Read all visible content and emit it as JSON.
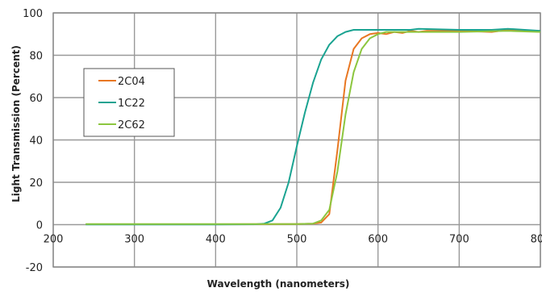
{
  "chart_data": {
    "type": "line",
    "title": "",
    "xlabel": "Wavelength (nanometers)",
    "ylabel": "Light Transmission (Percent)",
    "xlim": [
      200,
      800
    ],
    "ylim": [
      -20,
      100
    ],
    "xticks": [
      200,
      300,
      400,
      500,
      600,
      700,
      800
    ],
    "yticks": [
      -20,
      0,
      20,
      40,
      60,
      80,
      100
    ],
    "grid": true,
    "legend_position": "left",
    "series": [
      {
        "name": "2C04",
        "color": "#E87722",
        "points": [
          [
            240,
            0.2
          ],
          [
            300,
            0.2
          ],
          [
            400,
            0.2
          ],
          [
            500,
            0.3
          ],
          [
            520,
            0.5
          ],
          [
            530,
            1.0
          ],
          [
            540,
            5.0
          ],
          [
            550,
            35.0
          ],
          [
            560,
            68.0
          ],
          [
            570,
            83.0
          ],
          [
            580,
            88.0
          ],
          [
            590,
            90.0
          ],
          [
            600,
            90.5
          ],
          [
            610,
            90.0
          ],
          [
            620,
            91.0
          ],
          [
            630,
            90.5
          ],
          [
            640,
            91.5
          ],
          [
            650,
            91.0
          ],
          [
            660,
            91.5
          ],
          [
            700,
            91.5
          ],
          [
            740,
            91.0
          ],
          [
            760,
            92.0
          ],
          [
            780,
            91.5
          ],
          [
            800,
            91.5
          ]
        ]
      },
      {
        "name": "1C22",
        "color": "#1AA391",
        "points": [
          [
            240,
            0.1
          ],
          [
            300,
            0.1
          ],
          [
            400,
            0.1
          ],
          [
            450,
            0.2
          ],
          [
            460,
            0.5
          ],
          [
            470,
            2.0
          ],
          [
            480,
            8.0
          ],
          [
            490,
            20.0
          ],
          [
            500,
            37.0
          ],
          [
            510,
            53.0
          ],
          [
            520,
            67.0
          ],
          [
            530,
            78.0
          ],
          [
            540,
            85.0
          ],
          [
            550,
            89.0
          ],
          [
            560,
            91.0
          ],
          [
            570,
            92.0
          ],
          [
            580,
            92.0
          ],
          [
            600,
            92.0
          ],
          [
            640,
            92.0
          ],
          [
            650,
            92.5
          ],
          [
            700,
            92.0
          ],
          [
            740,
            92.0
          ],
          [
            760,
            92.5
          ],
          [
            800,
            91.5
          ]
        ]
      },
      {
        "name": "2C62",
        "color": "#8CC63F",
        "points": [
          [
            240,
            0.3
          ],
          [
            300,
            0.3
          ],
          [
            400,
            0.3
          ],
          [
            500,
            0.3
          ],
          [
            520,
            0.5
          ],
          [
            530,
            2.0
          ],
          [
            540,
            7.0
          ],
          [
            550,
            25.0
          ],
          [
            560,
            52.0
          ],
          [
            570,
            72.0
          ],
          [
            580,
            83.0
          ],
          [
            590,
            88.0
          ],
          [
            600,
            90.0
          ],
          [
            610,
            91.0
          ],
          [
            650,
            91.0
          ],
          [
            700,
            91.0
          ],
          [
            760,
            91.5
          ],
          [
            800,
            91.0
          ]
        ]
      }
    ]
  }
}
